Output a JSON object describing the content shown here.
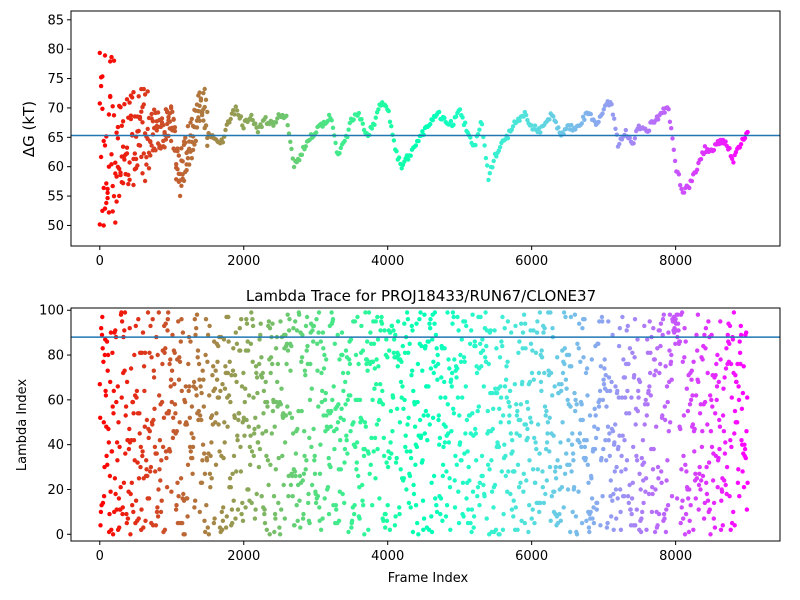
{
  "chart_data": [
    {
      "type": "scatter",
      "title": "",
      "xlabel": "",
      "ylabel": "ΔG (kT)",
      "xlim": [
        -400,
        9450
      ],
      "ylim": [
        46.5,
        86.5
      ],
      "xticks": [
        0,
        2000,
        4000,
        6000,
        8000
      ],
      "yticks": [
        50,
        55,
        60,
        65,
        70,
        75,
        80,
        85
      ],
      "hline": 65.3,
      "hline_color": "#1f77b4",
      "colormap": "rainbow (color encodes frame index, red at start to violet at end)",
      "series": [
        {
          "x": [
            0,
            250,
            500,
            750,
            1000,
            1100,
            1200,
            1300,
            1450,
            1500,
            1600,
            1700,
            1800,
            1900,
            2000,
            2100,
            2200,
            2300,
            2400,
            2500,
            2600,
            2700,
            2800,
            2900,
            3000,
            3100,
            3200,
            3300,
            3400,
            3500,
            3600,
            3700,
            3800,
            3900,
            4000,
            4100,
            4200,
            4300,
            4400,
            4500,
            4600,
            4700,
            4800,
            4900,
            5000,
            5100,
            5200,
            5300,
            5400,
            5500,
            5600,
            5700,
            5800,
            5900,
            6000,
            6100,
            6200,
            6300,
            6400,
            6500,
            6600,
            6700,
            6800,
            6900,
            7000,
            7100,
            7200,
            7300,
            7400,
            7500,
            7600,
            7700,
            7800,
            7900,
            8000,
            8100,
            8200,
            8300,
            8400,
            8500,
            8600,
            8700,
            8800,
            8900,
            9000
          ],
          "y": [
            65,
            63,
            65,
            66,
            67,
            58,
            62,
            66,
            71,
            66,
            65,
            64,
            68,
            70,
            67,
            69,
            66,
            68,
            67,
            69,
            68,
            60,
            62,
            65,
            66,
            67,
            69,
            62,
            64,
            68,
            69,
            65,
            67,
            71,
            70,
            63,
            60,
            62,
            64,
            66,
            68,
            69,
            68,
            67,
            70,
            66,
            63,
            68,
            58,
            62,
            64,
            66,
            68,
            69,
            67,
            66,
            68,
            69,
            65,
            67,
            66,
            68,
            69,
            67,
            70,
            71,
            64,
            66,
            64,
            67,
            66,
            68,
            69,
            70,
            60,
            56,
            57,
            60,
            63,
            63,
            64,
            64,
            61,
            64,
            66
          ]
        }
      ]
    },
    {
      "type": "scatter",
      "title": "Lambda Trace for PROJ18433/RUN67/CLONE37",
      "xlabel": "Frame Index",
      "ylabel": "Lambda Index",
      "xlim": [
        -400,
        9450
      ],
      "ylim": [
        -3,
        101
      ],
      "xticks": [
        0,
        2000,
        4000,
        6000,
        8000
      ],
      "yticks": [
        0,
        20,
        40,
        60,
        80,
        100
      ],
      "hline": 88,
      "hline_color": "#1f77b4",
      "colormap": "rainbow (color encodes frame index, red at start to violet at end)",
      "value_range": [
        0,
        99
      ]
    }
  ],
  "tick_text": {
    "top_y": [
      "85",
      "80",
      "75",
      "70",
      "65",
      "60",
      "55",
      "50"
    ],
    "top_x": [
      "0",
      "2000",
      "4000",
      "6000",
      "8000"
    ],
    "bottom_y": [
      "100",
      "80",
      "60",
      "40",
      "20",
      "0"
    ],
    "bottom_x": [
      "0",
      "2000",
      "4000",
      "6000",
      "8000"
    ]
  }
}
